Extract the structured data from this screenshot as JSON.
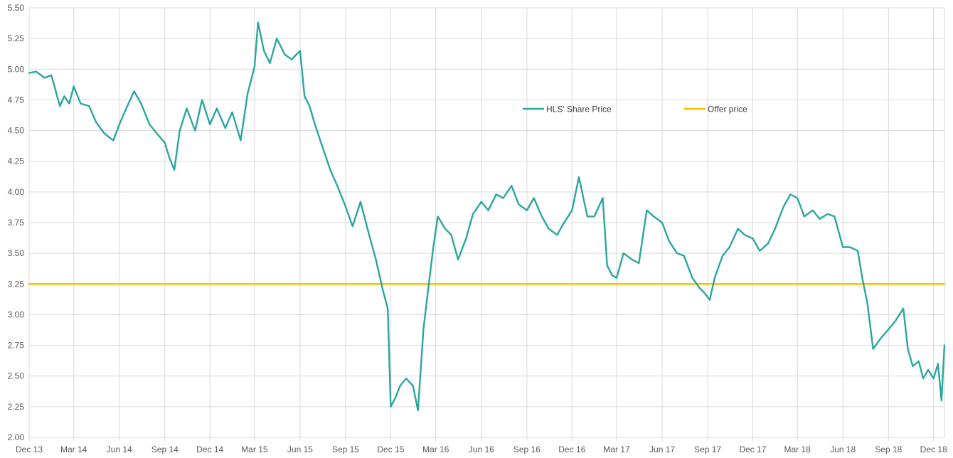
{
  "chart_data": {
    "type": "line",
    "title": "",
    "xlabel": "",
    "ylabel": "",
    "ylim": [
      2.0,
      5.5
    ],
    "yticks": [
      "2.00",
      "2.25",
      "2.50",
      "2.75",
      "3.00",
      "3.25",
      "3.50",
      "3.75",
      "4.00",
      "4.25",
      "4.50",
      "4.75",
      "5.00",
      "5.25",
      "5.50"
    ],
    "xlim": [
      "2013-12-01",
      "2018-12-23"
    ],
    "xticks": [
      {
        "date": "2013-12-01",
        "label": "Dec 13"
      },
      {
        "date": "2014-03-01",
        "label": "Mar 14"
      },
      {
        "date": "2014-06-01",
        "label": "Jun 14"
      },
      {
        "date": "2014-09-01",
        "label": "Sep 14"
      },
      {
        "date": "2014-12-01",
        "label": "Dec 14"
      },
      {
        "date": "2015-03-01",
        "label": "Mar 15"
      },
      {
        "date": "2015-06-01",
        "label": "Jun 15"
      },
      {
        "date": "2015-09-01",
        "label": "Sep 15"
      },
      {
        "date": "2015-12-01",
        "label": "Dec 15"
      },
      {
        "date": "2016-03-01",
        "label": "Mar 16"
      },
      {
        "date": "2016-06-01",
        "label": "Jun 16"
      },
      {
        "date": "2016-09-01",
        "label": "Sep 16"
      },
      {
        "date": "2016-12-01",
        "label": "Dec 16"
      },
      {
        "date": "2017-03-01",
        "label": "Mar 17"
      },
      {
        "date": "2017-06-01",
        "label": "Jun 17"
      },
      {
        "date": "2017-09-01",
        "label": "Sep 17"
      },
      {
        "date": "2017-12-01",
        "label": "Dec 17"
      },
      {
        "date": "2018-03-01",
        "label": "Mar 18"
      },
      {
        "date": "2018-06-01",
        "label": "Jun 18"
      },
      {
        "date": "2018-09-01",
        "label": "Sep 18"
      },
      {
        "date": "2018-12-01",
        "label": "Dec 18"
      }
    ],
    "grid": true,
    "legend_position": "upper-center",
    "colors": {
      "share_price": "#2ba69f",
      "offer_price": "#ffc000",
      "grid": "#d9d9d9",
      "tick_text": "#595959"
    },
    "series": [
      {
        "name": "HLS' Share Price",
        "x": [
          "2013-12-01",
          "2013-12-15",
          "2014-01-01",
          "2014-01-15",
          "2014-02-01",
          "2014-02-10",
          "2014-02-20",
          "2014-03-01",
          "2014-03-15",
          "2014-04-01",
          "2014-04-15",
          "2014-05-01",
          "2014-05-10",
          "2014-05-20",
          "2014-06-01",
          "2014-06-15",
          "2014-07-01",
          "2014-07-15",
          "2014-08-01",
          "2014-08-15",
          "2014-09-01",
          "2014-09-10",
          "2014-09-20",
          "2014-10-01",
          "2014-10-15",
          "2014-11-01",
          "2014-11-15",
          "2014-12-01",
          "2014-12-15",
          "2015-01-01",
          "2015-01-15",
          "2015-02-01",
          "2015-02-15",
          "2015-03-01",
          "2015-03-08",
          "2015-03-20",
          "2015-04-01",
          "2015-04-15",
          "2015-05-01",
          "2015-05-15",
          "2015-06-01",
          "2015-06-10",
          "2015-06-20",
          "2015-07-01",
          "2015-07-15",
          "2015-08-01",
          "2015-08-15",
          "2015-09-01",
          "2015-09-15",
          "2015-10-01",
          "2015-10-15",
          "2015-11-01",
          "2015-11-15",
          "2015-11-25",
          "2015-12-01",
          "2015-12-10",
          "2015-12-20",
          "2016-01-01",
          "2016-01-15",
          "2016-01-25",
          "2016-02-05",
          "2016-02-15",
          "2016-02-25",
          "2016-03-05",
          "2016-03-20",
          "2016-04-01",
          "2016-04-15",
          "2016-05-01",
          "2016-05-15",
          "2016-06-01",
          "2016-06-15",
          "2016-07-01",
          "2016-07-15",
          "2016-08-01",
          "2016-08-15",
          "2016-09-01",
          "2016-09-15",
          "2016-10-01",
          "2016-10-15",
          "2016-11-01",
          "2016-11-15",
          "2016-12-01",
          "2016-12-15",
          "2017-01-01",
          "2017-01-15",
          "2017-02-01",
          "2017-02-10",
          "2017-02-20",
          "2017-03-01",
          "2017-03-15",
          "2017-04-01",
          "2017-04-15",
          "2017-05-01",
          "2017-05-15",
          "2017-06-01",
          "2017-06-15",
          "2017-07-01",
          "2017-07-15",
          "2017-08-01",
          "2017-08-15",
          "2017-08-25",
          "2017-09-05",
          "2017-09-15",
          "2017-10-01",
          "2017-10-15",
          "2017-11-01",
          "2017-11-15",
          "2017-12-01",
          "2017-12-15",
          "2018-01-01",
          "2018-01-15",
          "2018-02-01",
          "2018-02-15",
          "2018-03-01",
          "2018-03-15",
          "2018-04-01",
          "2018-04-15",
          "2018-05-01",
          "2018-05-15",
          "2018-06-01",
          "2018-06-15",
          "2018-07-01",
          "2018-07-10",
          "2018-07-20",
          "2018-08-01",
          "2018-08-15",
          "2018-09-01",
          "2018-09-15",
          "2018-10-01",
          "2018-10-10",
          "2018-10-20",
          "2018-11-01",
          "2018-11-10",
          "2018-11-20",
          "2018-12-01",
          "2018-12-10",
          "2018-12-17",
          "2018-12-23"
        ],
        "values": [
          4.97,
          4.98,
          4.93,
          4.95,
          4.7,
          4.78,
          4.72,
          4.86,
          4.72,
          4.7,
          4.57,
          4.48,
          4.45,
          4.42,
          4.55,
          4.68,
          4.82,
          4.72,
          4.55,
          4.48,
          4.4,
          4.28,
          4.18,
          4.5,
          4.68,
          4.5,
          4.75,
          4.55,
          4.68,
          4.52,
          4.65,
          4.42,
          4.8,
          5.02,
          5.38,
          5.15,
          5.05,
          5.25,
          5.12,
          5.08,
          5.15,
          4.78,
          4.7,
          4.55,
          4.38,
          4.18,
          4.05,
          3.88,
          3.72,
          3.92,
          3.7,
          3.45,
          3.2,
          3.05,
          2.25,
          2.32,
          2.42,
          2.48,
          2.42,
          2.22,
          2.88,
          3.22,
          3.55,
          3.8,
          3.7,
          3.65,
          3.45,
          3.62,
          3.82,
          3.92,
          3.85,
          3.98,
          3.95,
          4.05,
          3.9,
          3.85,
          3.95,
          3.8,
          3.7,
          3.65,
          3.75,
          3.85,
          4.12,
          3.8,
          3.8,
          3.95,
          3.4,
          3.32,
          3.3,
          3.5,
          3.45,
          3.42,
          3.85,
          3.8,
          3.75,
          3.6,
          3.5,
          3.48,
          3.3,
          3.22,
          3.18,
          3.12,
          3.3,
          3.48,
          3.55,
          3.7,
          3.65,
          3.62,
          3.52,
          3.58,
          3.7,
          3.88,
          3.98,
          3.95,
          3.8,
          3.85,
          3.78,
          3.82,
          3.8,
          3.55,
          3.55,
          3.52,
          3.3,
          3.1,
          2.72,
          2.8,
          2.88,
          2.95,
          3.05,
          2.72,
          2.58,
          2.62,
          2.48,
          2.55,
          2.48,
          2.6,
          2.3,
          2.75
        ]
      },
      {
        "name": "Offer price",
        "x": [
          "2013-12-01",
          "2018-12-23"
        ],
        "values": [
          3.25,
          3.25
        ]
      }
    ]
  }
}
